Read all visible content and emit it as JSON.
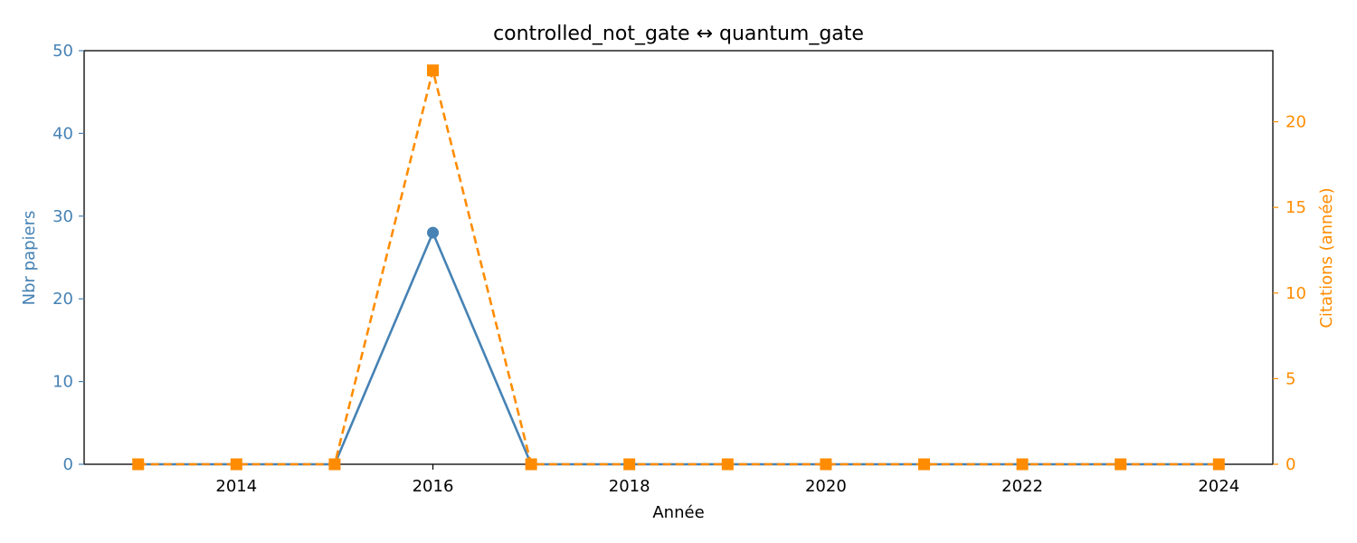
{
  "chart_data": {
    "type": "line",
    "title": "controlled_not_gate  ↔  quantum_gate",
    "xlabel": "Année",
    "ylabel_left": "Nbr papiers",
    "ylabel_right": "Citations (année)",
    "x": [
      2013,
      2014,
      2015,
      2016,
      2017,
      2018,
      2019,
      2020,
      2021,
      2022,
      2023,
      2024
    ],
    "xlim": [
      2012.45,
      2024.55
    ],
    "xticks": [
      "2014",
      "2016",
      "2018",
      "2020",
      "2022",
      "2024"
    ],
    "ylim_left": [
      0,
      50
    ],
    "yticks_left": [
      "0",
      "10",
      "20",
      "30",
      "40",
      "50"
    ],
    "ylim_right": [
      0,
      24.15
    ],
    "yticks_right": [
      "0",
      "5",
      "10",
      "15",
      "20"
    ],
    "grid": false,
    "legend": "none",
    "series": [
      {
        "axis": "left",
        "color": "#4682b4",
        "style": "solid",
        "marker": "circle",
        "values": [
          0,
          0,
          0,
          28,
          0,
          0,
          0,
          0,
          0,
          0,
          0,
          0
        ]
      },
      {
        "axis": "right",
        "color": "#ff8c00",
        "style": "dashed",
        "marker": "square",
        "values": [
          0,
          0,
          0,
          23,
          0,
          0,
          0,
          0,
          0,
          0,
          0,
          0
        ]
      }
    ],
    "colors": {
      "left_axis": "#4682b4",
      "right_axis": "#ff8c00",
      "text": "#000000"
    }
  }
}
